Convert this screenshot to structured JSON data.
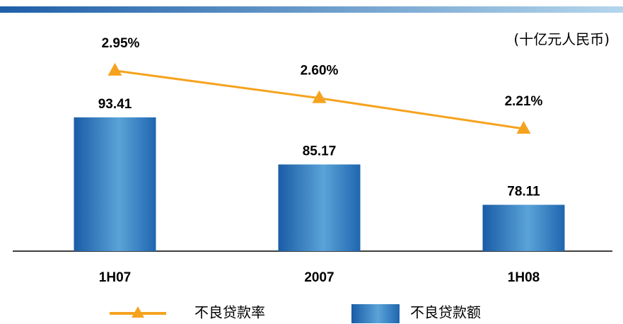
{
  "chart_data": {
    "type": "bar",
    "annotation": "(十亿元人民币)",
    "categories": [
      "1H07",
      "2007",
      "1H08"
    ],
    "series": [
      {
        "name": "不良贷款额",
        "type": "bar",
        "color": "#1f66b0",
        "values": [
          93.41,
          85.17,
          78.11
        ]
      },
      {
        "name": "不良贷款率",
        "type": "line",
        "axis": "y2",
        "color": "#f5a31f",
        "values": [
          2.95,
          2.6,
          2.21
        ],
        "value_labels": [
          "2.95%",
          "2.60%",
          "2.21%"
        ]
      }
    ],
    "ylim": [
      70,
      109
    ],
    "y2lim": [
      0.65,
      3.49
    ]
  }
}
